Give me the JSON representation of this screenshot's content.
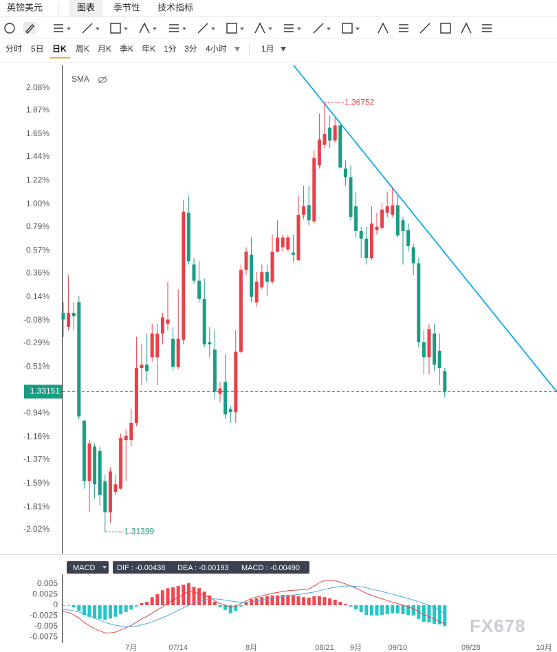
{
  "header": {
    "symbol": "英镑美元",
    "tabs": [
      "图表",
      "季节性",
      "技术指标"
    ],
    "active_tab": 0
  },
  "periods": {
    "items": [
      "分时",
      "5日",
      "日K",
      "周K",
      "月K",
      "季K",
      "年K",
      "1分",
      "3分",
      "4小时",
      "1月"
    ],
    "active": 2
  },
  "chart_data": {
    "type": "candlestick",
    "indicator": "SMA",
    "categories": [
      null,
      null,
      null,
      null,
      null,
      null,
      null,
      null,
      null,
      null,
      null,
      null,
      null,
      "7月",
      null,
      null,
      null,
      null,
      null,
      null,
      null,
      null,
      "07/14",
      null,
      null,
      null,
      null,
      null,
      null,
      null,
      null,
      null,
      null,
      null,
      null,
      null,
      "8月",
      null,
      null,
      null,
      null,
      null,
      null,
      null,
      null,
      null,
      null,
      null,
      null,
      null,
      "08/21",
      null,
      null,
      null,
      null,
      null,
      "9月",
      null,
      null,
      null,
      null,
      null,
      null,
      null,
      "09/10",
      null,
      null,
      null,
      null,
      null,
      null,
      null,
      null,
      null,
      null,
      null,
      null,
      null,
      "09/28",
      null,
      null,
      null,
      null,
      null,
      null,
      null,
      null,
      null,
      null,
      null,
      null,
      null,
      "10月"
    ],
    "open": [
      -0.01,
      -0.14,
      -0.01,
      0.09,
      -1.01,
      -1.57,
      -1.25,
      -1.29,
      -1.57,
      -1.86,
      -1.67,
      -1.64,
      -1.19,
      -1.19,
      -1.03,
      -0.52,
      -0.49,
      -0.42,
      -0.42,
      -0.2,
      -0.11,
      -0.25,
      -0.51,
      -0.26,
      0.92,
      0.44,
      0.29,
      0.12,
      -0.28,
      -0.35,
      -0.76,
      -0.65,
      -0.9,
      -0.93,
      -0.37,
      0.39,
      0.53,
      0.09,
      0.23,
      0.37,
      0.28,
      0.56,
      0.6,
      0.58,
      0.55,
      0.48,
      0.9,
      0.99,
      0.84,
      1.36,
      1.55,
      1.71,
      1.59,
      1.73,
      1.33,
      1.25,
      0.98,
      0.75,
      0.68,
      0.5,
      0.76,
      0.78,
      0.92,
      0.9,
      0.99,
      0.85,
      0.76,
      0.6,
      0.45,
      -0.28,
      -0.42,
      -0.2,
      -0.36,
      -0.55,
      null,
      null,
      null,
      null,
      null,
      null,
      null,
      null,
      null,
      null,
      null,
      null,
      null,
      null,
      null,
      null,
      null,
      null,
      null
    ],
    "high": [
      0.09,
      0.34,
      0.09,
      0.15,
      -1.0,
      -1.19,
      -1.22,
      -1.25,
      -1.51,
      -1.44,
      -1.51,
      -1.13,
      -1.09,
      -0.9,
      -0.23,
      -0.3,
      -0.2,
      -0.11,
      -0.11,
      -0.01,
      0.28,
      -0.14,
      0.21,
      1.04,
      1.08,
      0.5,
      0.47,
      0.31,
      -0.14,
      -0.17,
      -0.65,
      -0.39,
      -0.87,
      -0.17,
      0.44,
      0.6,
      0.69,
      0.37,
      0.44,
      0.44,
      0.72,
      0.85,
      0.72,
      0.71,
      0.72,
      1.08,
      1.17,
      1.17,
      1.5,
      1.84,
      1.94,
      1.82,
      1.8,
      1.76,
      1.41,
      1.36,
      1.11,
      0.79,
      0.79,
      0.98,
      0.92,
      1.01,
      1.11,
      1.16,
      1.08,
      0.88,
      0.82,
      0.63,
      0.5,
      -0.17,
      -0.11,
      -0.11,
      -0.2,
      -0.52,
      null,
      null,
      null,
      null,
      null,
      null,
      null,
      null,
      null,
      null,
      null,
      null,
      null,
      null,
      null,
      null,
      null,
      null,
      null
    ],
    "low": [
      -0.23,
      -0.17,
      -0.17,
      -1.0,
      -1.64,
      -1.86,
      -1.73,
      -1.8,
      -2.04,
      -1.96,
      -1.7,
      -1.65,
      -1.57,
      -1.25,
      -1.06,
      -0.68,
      -0.65,
      -0.46,
      -0.68,
      -0.3,
      -0.17,
      -0.55,
      -0.53,
      -0.3,
      0.44,
      0.26,
      0.09,
      -0.33,
      -0.42,
      -0.81,
      -0.84,
      -0.99,
      -1.03,
      -1.03,
      -0.39,
      0.34,
      0.09,
      0.05,
      0.21,
      0.15,
      0.26,
      0.55,
      0.56,
      0.56,
      0.46,
      0.47,
      0.86,
      0.8,
      0.82,
      1.33,
      1.52,
      1.52,
      1.57,
      1.33,
      1.17,
      0.85,
      0.69,
      0.5,
      0.44,
      0.48,
      0.72,
      0.76,
      0.88,
      0.88,
      0.69,
      0.44,
      0.56,
      0.34,
      -0.33,
      -0.58,
      -0.58,
      -0.55,
      -0.68,
      -0.79,
      null,
      null,
      null,
      null,
      null,
      null,
      null,
      null,
      null,
      null,
      null,
      null,
      null,
      null,
      null,
      null,
      null,
      null,
      null
    ],
    "close": [
      -0.07,
      -0.01,
      -0.04,
      -0.97,
      -1.57,
      -1.22,
      -1.6,
      -1.7,
      -1.86,
      -1.48,
      -1.6,
      -1.17,
      -1.15,
      -1.03,
      -0.52,
      -0.49,
      -0.55,
      -0.2,
      -0.2,
      -0.05,
      -0.07,
      -0.51,
      -0.25,
      0.93,
      0.47,
      0.29,
      0.12,
      -0.3,
      -0.3,
      -0.74,
      -0.71,
      -0.95,
      -0.93,
      -0.37,
      0.39,
      0.56,
      0.14,
      0.28,
      0.37,
      0.28,
      0.56,
      0.69,
      0.69,
      0.69,
      0.53,
      0.9,
      0.98,
      0.85,
      1.43,
      1.6,
      1.65,
      1.59,
      1.73,
      1.34,
      1.25,
      0.88,
      0.75,
      0.68,
      0.5,
      0.82,
      0.79,
      0.95,
      0.98,
      0.99,
      0.71,
      0.75,
      0.61,
      0.45,
      -0.28,
      -0.42,
      -0.16,
      -0.49,
      -0.52,
      -0.74,
      null,
      null,
      null,
      null,
      null,
      null,
      null,
      null,
      null,
      null,
      null,
      null,
      null,
      null,
      null,
      null,
      null,
      null,
      null
    ],
    "up_color": "#e8404a",
    "down_color": "#1a9d84",
    "ylim": [
      -2.243,
      2.288
    ],
    "yticks": [
      {
        "value": 2.08,
        "label": "2.08%"
      },
      {
        "value": 1.87,
        "label": "1.87%"
      },
      {
        "value": 1.65,
        "label": "1.65%"
      },
      {
        "value": 1.44,
        "label": "1.44%"
      },
      {
        "value": 1.22,
        "label": "1.22%"
      },
      {
        "value": 1.0,
        "label": "1.00%"
      },
      {
        "value": 0.79,
        "label": "0.79%"
      },
      {
        "value": 0.57,
        "label": "0.57%"
      },
      {
        "value": 0.36,
        "label": "0.36%"
      },
      {
        "value": 0.14,
        "label": "0.14%"
      },
      {
        "value": -0.08,
        "label": "-0.08%"
      },
      {
        "value": -0.29,
        "label": "-0.29%"
      },
      {
        "value": -0.51,
        "label": "-0.51%"
      },
      {
        "value": -0.94,
        "label": "-0.94%"
      },
      {
        "value": -1.16,
        "label": "-1.16%"
      },
      {
        "value": -1.37,
        "label": "-1.37%"
      },
      {
        "value": -1.59,
        "label": "-1.59%"
      },
      {
        "value": -1.81,
        "label": "-1.81%"
      },
      {
        "value": -2.02,
        "label": "-2.02%"
      }
    ],
    "high_label": "1.36752",
    "low_label": "1.31399",
    "last_label": "1.33151",
    "macd": {
      "type": "macd",
      "name": "MACD",
      "readout": [
        "DIF : -0.00438",
        "DEA : -0.00193",
        "MACD : -0.00490"
      ],
      "ylim": [
        -0.00887,
        0.00726
      ],
      "yticks": [
        0.005,
        0.0025,
        0,
        -0.0025,
        -0.005,
        -0.0075
      ],
      "dif": {
        "color": "#e2424a",
        "values": [
          -0.0015,
          -0.0017,
          -0.0022,
          -0.003,
          -0.004,
          -0.0048,
          -0.0055,
          -0.006,
          -0.0065,
          -0.0065,
          -0.0063,
          -0.0058,
          -0.0053,
          -0.0047,
          -0.004,
          -0.0032,
          -0.0026,
          -0.0018,
          -0.0011,
          -0.0004,
          0.0005,
          0.0012,
          0.0018,
          0.0026,
          0.0033,
          0.003,
          0.0028,
          0.0024,
          0.0018,
          0.001,
          0.0004,
          0,
          -0.0005,
          -0.0002,
          0.0004,
          0.001,
          0.0016,
          0.0019,
          0.0022,
          0.0025,
          0.0028,
          0.003,
          0.0032,
          0.0034,
          0.0035,
          0.0036,
          0.0037,
          0.0038,
          0.0045,
          0.0053,
          0.0058,
          0.0058,
          0.0057,
          0.0054,
          0.005,
          0.0045,
          0.004,
          0.0034,
          0.0028,
          0.0023,
          0.0019,
          0.0015,
          0.0011,
          0.0007,
          0.0004,
          0,
          -0.0004,
          -0.0008,
          -0.0015,
          -0.0022,
          -0.0027,
          -0.0033,
          -0.0038,
          -0.00438,
          null,
          null,
          null,
          null,
          null,
          null,
          null,
          null,
          null,
          null,
          null,
          null,
          null,
          null,
          null,
          null,
          null,
          null,
          null
        ]
      },
      "dea": {
        "color": "#4aa8e0",
        "values": [
          -0.001,
          -0.0011,
          -0.0013,
          -0.0016,
          -0.002,
          -0.0025,
          -0.003,
          -0.0035,
          -0.004,
          -0.0044,
          -0.0047,
          -0.0049,
          -0.005,
          -0.005,
          -0.0049,
          -0.0046,
          -0.0043,
          -0.0039,
          -0.0034,
          -0.0029,
          -0.0024,
          -0.0018,
          -0.0012,
          -0.0006,
          0,
          0.0005,
          0.0009,
          0.0012,
          0.0014,
          0.0015,
          0.0014,
          0.0012,
          0.001,
          0.0008,
          0.0007,
          0.0007,
          0.0008,
          0.001,
          0.0012,
          0.0014,
          0.0016,
          0.0018,
          0.002,
          0.0022,
          0.0024,
          0.0025,
          0.0027,
          0.0029,
          0.0031,
          0.0034,
          0.0037,
          0.004,
          0.0042,
          0.0044,
          0.0045,
          0.0045,
          0.0044,
          0.0043,
          0.0041,
          0.0038,
          0.0035,
          0.0032,
          0.0029,
          0.0026,
          0.0022,
          0.0019,
          0.0016,
          0.0012,
          0.0008,
          0.0004,
          0,
          -0.0005,
          -0.0012,
          -0.00193,
          null,
          null,
          null,
          null,
          null,
          null,
          null,
          null,
          null,
          null,
          null,
          null,
          null,
          null,
          null,
          null,
          null,
          null,
          null
        ]
      },
      "hist": {
        "up_color": "#f2464e",
        "down_color": "#22c5c8",
        "values": [
          -0.0002,
          0,
          -0.0005,
          -0.0013,
          -0.0023,
          -0.0027,
          -0.0031,
          -0.0032,
          -0.0034,
          -0.0031,
          -0.0027,
          -0.0021,
          -0.0016,
          -0.001,
          -0.0003,
          0.0005,
          0.0008,
          0.0019,
          0.0026,
          0.0035,
          0.004,
          0.0042,
          0.0045,
          0.0048,
          0.0052,
          0.0043,
          0.004,
          0.0032,
          0.0023,
          0.0008,
          -0.0005,
          -0.0011,
          -0.0019,
          -0.0013,
          -0.0003,
          0.0006,
          0.0014,
          0.0016,
          0.0019,
          0.0021,
          0.0023,
          0.0023,
          0.0024,
          0.0024,
          0.0023,
          0.0021,
          0.0019,
          0.0018,
          0.0021,
          0.0021,
          0.0019,
          0.0016,
          0.0013,
          0.0008,
          0.0003,
          -0.0003,
          -0.001,
          -0.0016,
          -0.0023,
          -0.0024,
          -0.0024,
          -0.0023,
          -0.0021,
          -0.0019,
          -0.0019,
          -0.0021,
          -0.0023,
          -0.0024,
          -0.0032,
          -0.0039,
          -0.004,
          -0.0044,
          -0.0045,
          -0.0049,
          null,
          null,
          null,
          null,
          null,
          null,
          null,
          null,
          null,
          null,
          null,
          null,
          null,
          null,
          null,
          null,
          null,
          null,
          null
        ]
      }
    }
  },
  "watermark": "FX678"
}
